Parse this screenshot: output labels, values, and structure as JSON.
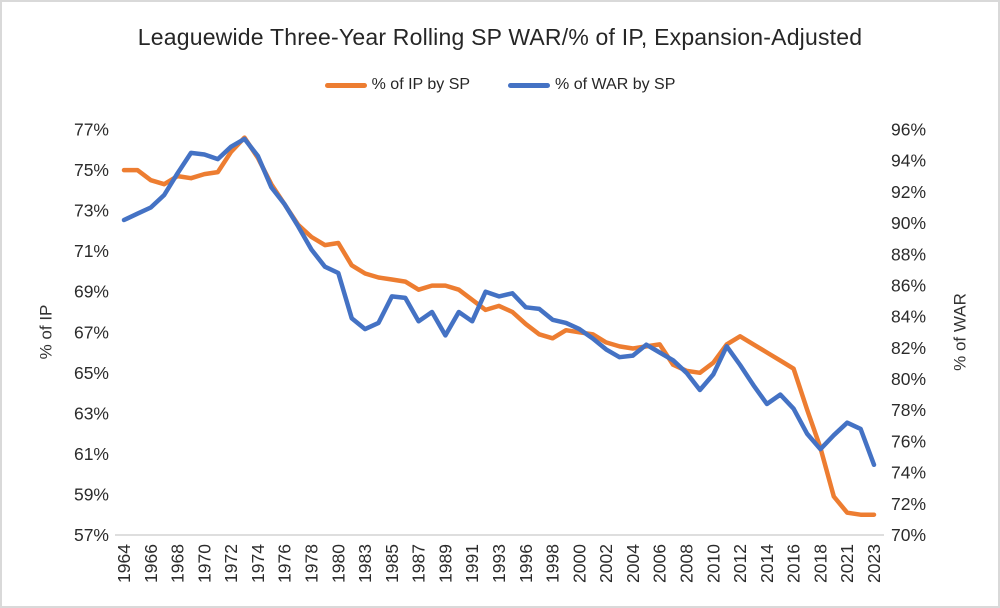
{
  "chart_data": {
    "type": "line",
    "title": "Leaguewide Three-Year Rolling SP WAR/% of IP, Expansion-Adjusted",
    "grid": false,
    "legend_position": "top",
    "categories": [
      "1964",
      "1965",
      "1966",
      "1967",
      "1968",
      "1969",
      "1970",
      "1971",
      "1972",
      "1973",
      "1974",
      "1975",
      "1976",
      "1977",
      "1978",
      "1979",
      "1980",
      "1982",
      "1983",
      "1984",
      "1985",
      "1986",
      "1987",
      "1988",
      "1989",
      "1990",
      "1991",
      "1992",
      "1993",
      "1995",
      "1996",
      "1997",
      "1998",
      "1999",
      "2000",
      "2001",
      "2002",
      "2003",
      "2004",
      "2005",
      "2006",
      "2007",
      "2008",
      "2009",
      "2010",
      "2011",
      "2012",
      "2013",
      "2014",
      "2015",
      "2016",
      "2017",
      "2018",
      "2019",
      "2021",
      "2022",
      "2023"
    ],
    "x_tick_labels": [
      "1964",
      "1966",
      "1968",
      "1970",
      "1972",
      "1974",
      "1976",
      "1978",
      "1980",
      "1983",
      "1985",
      "1987",
      "1989",
      "1991",
      "1993",
      "1996",
      "1998",
      "2000",
      "2002",
      "2004",
      "2006",
      "2008",
      "2010",
      "2012",
      "2014",
      "2016",
      "2018",
      "2021",
      "2023"
    ],
    "series": [
      {
        "name": "% of IP by SP",
        "axis": "left",
        "color": "#ED7D31",
        "values": [
          75.0,
          75.0,
          74.5,
          74.3,
          74.7,
          74.6,
          74.8,
          74.9,
          75.9,
          76.6,
          75.6,
          74.3,
          73.3,
          72.3,
          71.7,
          71.3,
          71.4,
          70.3,
          69.9,
          69.7,
          69.6,
          69.5,
          69.1,
          69.3,
          69.3,
          69.1,
          68.6,
          68.1,
          68.3,
          68.0,
          67.4,
          66.9,
          66.7,
          67.1,
          67.0,
          66.9,
          66.5,
          66.3,
          66.2,
          66.3,
          66.4,
          65.4,
          65.1,
          65.0,
          65.5,
          66.4,
          66.8,
          66.4,
          66.0,
          65.6,
          65.2,
          63.2,
          61.3,
          58.9,
          58.1,
          58.0,
          58.0
        ]
      },
      {
        "name": "% of WAR by SP",
        "axis": "right",
        "color": "#4472C4",
        "values": [
          90.2,
          90.6,
          91.0,
          91.8,
          93.2,
          94.5,
          94.4,
          94.1,
          94.9,
          95.4,
          94.3,
          92.3,
          91.2,
          89.8,
          88.3,
          87.2,
          86.8,
          83.9,
          83.2,
          83.6,
          85.3,
          85.2,
          83.7,
          84.3,
          82.8,
          84.3,
          83.7,
          85.6,
          85.3,
          85.5,
          84.6,
          84.5,
          83.8,
          83.6,
          83.2,
          82.6,
          81.9,
          81.4,
          81.5,
          82.2,
          81.7,
          81.2,
          80.4,
          79.3,
          80.3,
          82.1,
          80.9,
          79.6,
          78.4,
          79.0,
          78.1,
          76.5,
          75.5,
          76.4,
          77.2,
          76.8,
          74.5
        ]
      }
    ],
    "left_axis": {
      "title": "% of IP",
      "min": 57,
      "max": 77,
      "tick_labels": [
        "77%",
        "75%",
        "73%",
        "71%",
        "69%",
        "67%",
        "65%",
        "63%",
        "61%",
        "59%",
        "57%"
      ]
    },
    "right_axis": {
      "title": "% of WAR",
      "min": 70,
      "max": 96,
      "tick_labels": [
        "96%",
        "94%",
        "92%",
        "90%",
        "88%",
        "86%",
        "84%",
        "82%",
        "80%",
        "78%",
        "76%",
        "74%",
        "72%",
        "70%"
      ]
    },
    "colors": {
      "axis_line": "#D9D9D9",
      "ip_series": "#ED7D31",
      "war_series": "#4472C4"
    }
  }
}
